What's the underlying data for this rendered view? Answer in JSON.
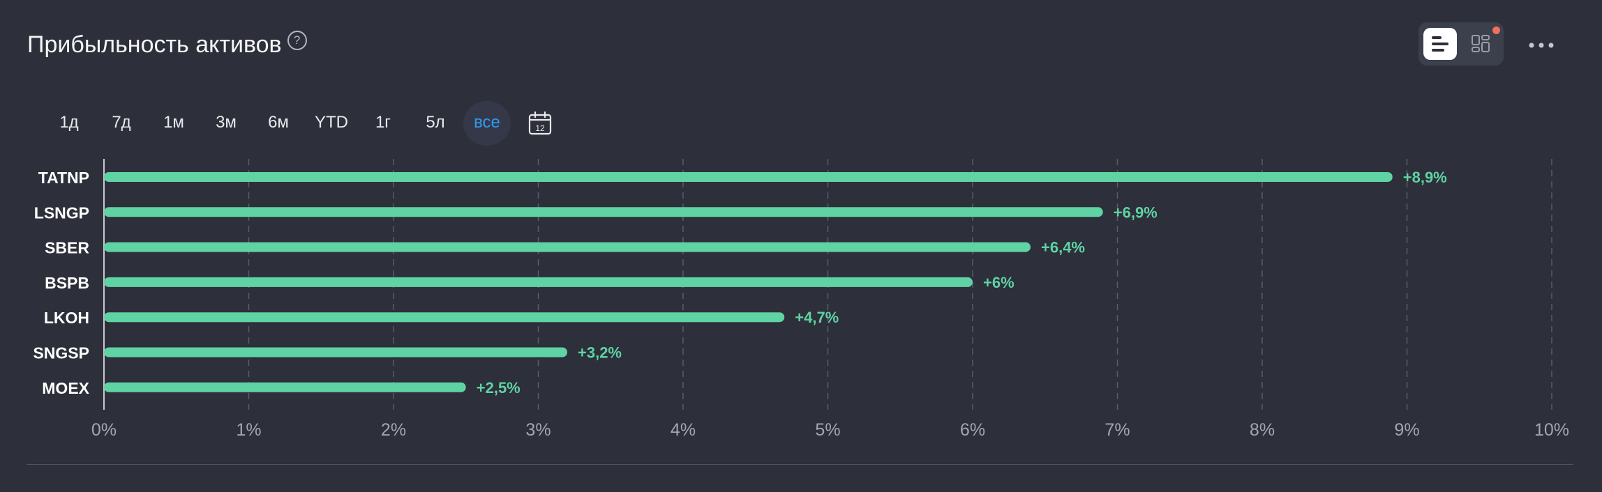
{
  "header": {
    "title": "Прибыльность активов",
    "help_icon": "question-circle-icon"
  },
  "view_toggle": {
    "active_view": "bar-chart-view",
    "icons": [
      "bar-chart-icon",
      "grid-layout-icon"
    ],
    "notification": true
  },
  "more_icon": "more-horizontal-icon",
  "periods": [
    {
      "label": "1д",
      "active": false
    },
    {
      "label": "7д",
      "active": false
    },
    {
      "label": "1м",
      "active": false
    },
    {
      "label": "3м",
      "active": false
    },
    {
      "label": "6м",
      "active": false
    },
    {
      "label": "YTD",
      "active": false
    },
    {
      "label": "1г",
      "active": false
    },
    {
      "label": "5л",
      "active": false
    },
    {
      "label": "все",
      "active": true
    }
  ],
  "calendar": {
    "icon": "calendar-icon",
    "day": "12"
  },
  "colors": {
    "background": "#2d2f3a",
    "bar": "#5fd3a3",
    "accent": "#2f9bf0",
    "grid": "#5a5d69",
    "notification": "#f0705d"
  },
  "chart_data": {
    "type": "bar",
    "orientation": "horizontal",
    "categories": [
      "TATNP",
      "LSNGP",
      "SBER",
      "BSPB",
      "LKOH",
      "SNGSP",
      "MOEX"
    ],
    "values": [
      8.9,
      6.9,
      6.4,
      6.0,
      4.7,
      3.2,
      2.5
    ],
    "value_labels": [
      "+8,9%",
      "+6,9%",
      "+6,4%",
      "+6%",
      "+4,7%",
      "+3,2%",
      "+2,5%"
    ],
    "xlim": [
      0,
      10
    ],
    "xticks": [
      "0%",
      "1%",
      "2%",
      "3%",
      "4%",
      "5%",
      "6%",
      "7%",
      "8%",
      "9%",
      "10%"
    ],
    "grid": true,
    "title": "",
    "xlabel": "",
    "ylabel": ""
  }
}
